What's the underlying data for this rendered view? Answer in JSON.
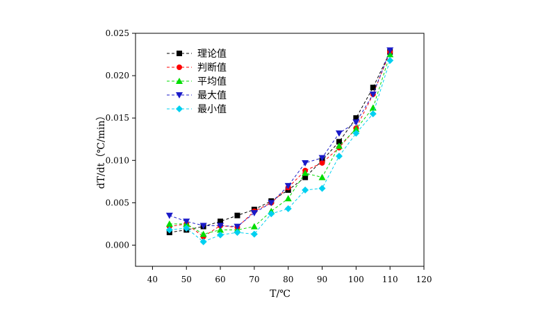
{
  "chart_data": {
    "type": "line",
    "xlabel": "T/℃",
    "ylabel": "dT/dt（℃/min）",
    "xlim": [
      35,
      120
    ],
    "ylim": [
      -0.0025,
      0.025
    ],
    "xticks": [
      "40",
      "50",
      "60",
      "70",
      "80",
      "90",
      "100",
      "110",
      "120"
    ],
    "yticks": [
      "0.000",
      "0.005",
      "0.010",
      "0.015",
      "0.020",
      "0.025"
    ],
    "legend_position": "top-left",
    "x": [
      45,
      50,
      55,
      60,
      65,
      70,
      75,
      80,
      85,
      90,
      95,
      100,
      105,
      110
    ],
    "series": [
      {
        "name": "理论值",
        "color": "#000000",
        "marker": "square",
        "values": [
          0.0015,
          0.0018,
          0.0022,
          0.0028,
          0.0035,
          0.0042,
          0.0052,
          0.0065,
          0.008,
          0.01,
          0.0122,
          0.015,
          0.0186,
          0.0228
        ]
      },
      {
        "name": "判断值",
        "color": "#ff0000",
        "marker": "circle",
        "values": [
          0.0022,
          0.0025,
          0.001,
          0.0023,
          0.0021,
          0.004,
          0.005,
          0.0068,
          0.0088,
          0.0097,
          0.0115,
          0.0138,
          0.0178,
          0.0228
        ]
      },
      {
        "name": "平均值",
        "color": "#00dd00",
        "marker": "triangle-up",
        "values": [
          0.0025,
          0.0025,
          0.0013,
          0.0018,
          0.0018,
          0.0022,
          0.004,
          0.0055,
          0.0085,
          0.008,
          0.0117,
          0.0137,
          0.0162,
          0.0225
        ]
      },
      {
        "name": "最大值",
        "color": "#1a1ac8",
        "marker": "triangle-down",
        "values": [
          0.0035,
          0.0028,
          0.0023,
          0.0023,
          0.0022,
          0.0038,
          0.005,
          0.007,
          0.0097,
          0.0103,
          0.0132,
          0.0145,
          0.0178,
          0.023
        ]
      },
      {
        "name": "最小值",
        "color": "#00d0f0",
        "marker": "diamond",
        "values": [
          0.0018,
          0.002,
          0.0004,
          0.0012,
          0.0015,
          0.0013,
          0.0037,
          0.0043,
          0.0065,
          0.0067,
          0.0105,
          0.0132,
          0.0155,
          0.0218
        ]
      }
    ]
  }
}
